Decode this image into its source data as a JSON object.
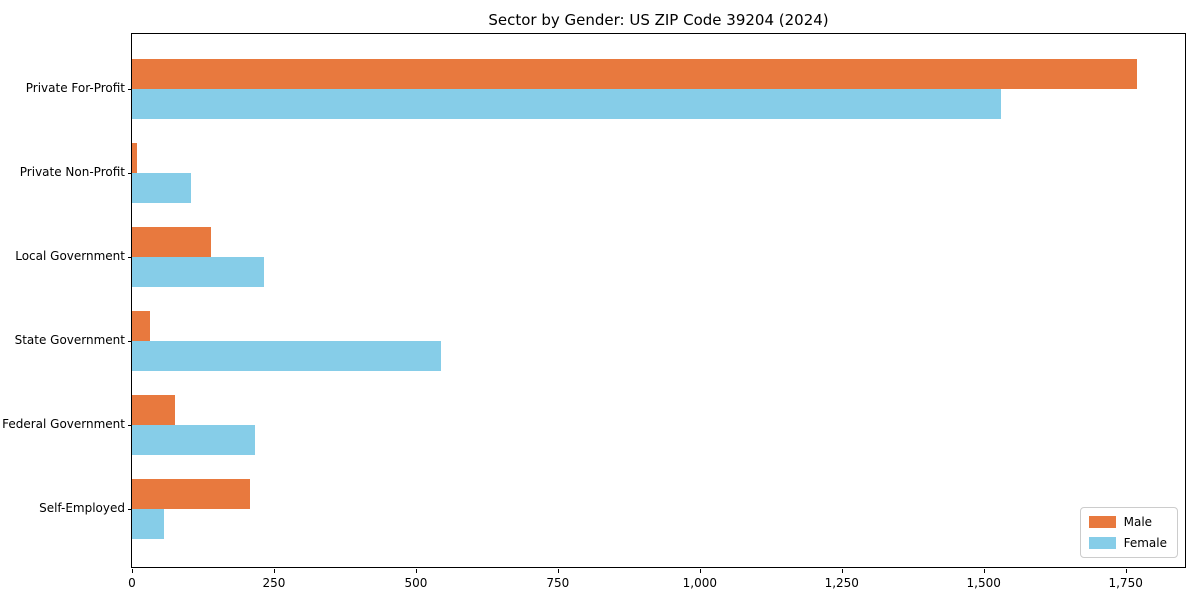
{
  "title": "Sector by Gender: US ZIP Code 39204 (2024)",
  "chart_data": {
    "type": "bar",
    "orientation": "horizontal",
    "title": "Sector by Gender: US ZIP Code 39204 (2024)",
    "categories": [
      "Private For-Profit",
      "Private Non-Profit",
      "Local Government",
      "State Government",
      "Federal Government",
      "Self-Employed"
    ],
    "series": [
      {
        "name": "Male",
        "color": "#e8793e",
        "values": [
          1770,
          9,
          139,
          32,
          76,
          208
        ]
      },
      {
        "name": "Female",
        "color": "#86cde8",
        "values": [
          1530,
          104,
          232,
          544,
          217,
          56
        ]
      }
    ],
    "xlim": [
      0,
      1858
    ],
    "xticks": [
      0,
      250,
      500,
      750,
      1000,
      1250,
      1500,
      1750
    ],
    "xtick_labels": [
      "0",
      "250",
      "500",
      "750",
      "1,000",
      "1,250",
      "1,500",
      "1,750"
    ],
    "xlabel": "",
    "ylabel": "",
    "grid": false,
    "legend_position": "lower right"
  },
  "colors": {
    "male": "#e8793e",
    "female": "#86cde8",
    "spine": "#000000",
    "legend_border": "#cccccc"
  }
}
